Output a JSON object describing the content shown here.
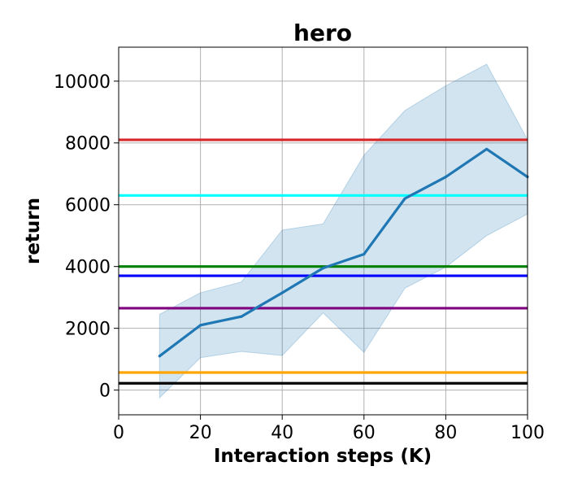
{
  "chart_data": {
    "type": "line",
    "title": "hero",
    "xlabel": "Interaction steps (K)",
    "ylabel": "return",
    "xlim": [
      0,
      100
    ],
    "ylim": [
      -800,
      11100
    ],
    "xticks": [
      0,
      20,
      40,
      60,
      80,
      100
    ],
    "yticks": [
      0,
      2000,
      4000,
      6000,
      8000,
      10000
    ],
    "grid": true,
    "series": [
      {
        "color": "#1f77b4",
        "x": [
          10,
          20,
          30,
          40,
          50,
          60,
          70,
          80,
          90,
          100
        ],
        "y": [
          1100,
          2100,
          2380,
          3150,
          3950,
          4400,
          6200,
          6900,
          7800,
          6900
        ],
        "lower": [
          -250,
          1050,
          1250,
          1120,
          2500,
          1220,
          3300,
          3980,
          5000,
          5700
        ],
        "upper": [
          2450,
          3150,
          3500,
          5180,
          5380,
          7600,
          9050,
          9850,
          10550,
          8100
        ],
        "band_color": "#1f77b4"
      }
    ],
    "reference_lines": [
      {
        "y": 8100,
        "color": "#d62728"
      },
      {
        "y": 6300,
        "color": "#00ffff"
      },
      {
        "y": 4000,
        "color": "#008000"
      },
      {
        "y": 3700,
        "color": "#0000ff"
      },
      {
        "y": 2650,
        "color": "#800080"
      },
      {
        "y": 570,
        "color": "#ffa500"
      },
      {
        "y": 220,
        "color": "#000000"
      }
    ]
  }
}
